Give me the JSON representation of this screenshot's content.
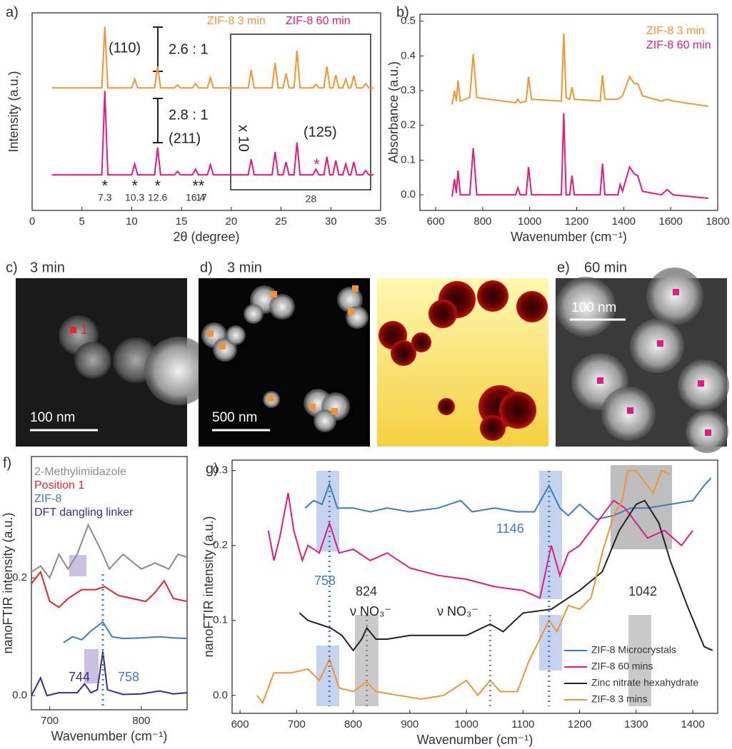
{
  "chart_data": [
    {
      "type": "line",
      "panel_label": "a)",
      "xlabel": "2θ (degree)",
      "ylabel": "Intensity (a.u.)",
      "xlim": [
        0,
        35
      ],
      "ylim": [
        0,
        1
      ],
      "xticks": [
        0,
        5,
        10,
        15,
        20,
        25,
        30,
        35
      ],
      "x": [
        2,
        7.0,
        7.3,
        7.6,
        10.0,
        10.3,
        10.6,
        12.3,
        12.6,
        12.9,
        14.3,
        14.6,
        14.9,
        16.1,
        16.4,
        16.7,
        17.6,
        17.9,
        18.2,
        21.7,
        22.0,
        22.3,
        24.1,
        24.4,
        24.7,
        25.2,
        25.5,
        25.8,
        26.3,
        26.6,
        26.9,
        28.2,
        28.5,
        28.8,
        29.3,
        29.6,
        29.9,
        30.2,
        30.5,
        30.8,
        31.2,
        31.5,
        31.8,
        32.0,
        32.3,
        32.6,
        33.2,
        33.5,
        33.8,
        34.3
      ],
      "series": [
        {
          "name": "ZIF-8 3 min",
          "color": "#f39433",
          "values": [
            0.62,
            0.62,
            0.929,
            0.62,
            0.62,
            0.664,
            0.62,
            0.62,
            0.729,
            0.62,
            0.62,
            0.635,
            0.62,
            0.62,
            0.642,
            0.62,
            0.62,
            0.671,
            0.62,
            0.62,
            0.711,
            0.62,
            0.62,
            0.747,
            0.62,
            0.62,
            0.693,
            0.62,
            0.62,
            0.809,
            0.62,
            0.62,
            0.638,
            0.62,
            0.62,
            0.729,
            0.62,
            0.62,
            0.685,
            0.62,
            0.62,
            0.664,
            0.62,
            0.62,
            0.682,
            0.62,
            0.62,
            0.642,
            0.62,
            0.62
          ]
        },
        {
          "name": "ZIF-8 60 min",
          "color": "#e6197f",
          "values": [
            0.18,
            0.18,
            0.605,
            0.18,
            0.18,
            0.235,
            0.18,
            0.18,
            0.318,
            0.18,
            0.18,
            0.198,
            0.18,
            0.18,
            0.209,
            0.18,
            0.18,
            0.231,
            0.18,
            0.18,
            0.26,
            0.18,
            0.18,
            0.296,
            0.18,
            0.18,
            0.245,
            0.18,
            0.18,
            0.344,
            0.18,
            0.18,
            0.209,
            0.18,
            0.18,
            0.271,
            0.18,
            0.18,
            0.253,
            0.18,
            0.18,
            0.235,
            0.18,
            0.18,
            0.245,
            0.18,
            0.18,
            0.202,
            0.18,
            0.18
          ]
        }
      ],
      "annotations": [
        "(110)",
        "2.6 : 1",
        "2.8 : 1",
        "(211)",
        "x 10",
        "(125)"
      ],
      "marker": "*",
      "peak_labels": [
        7.3,
        10.3,
        12.6,
        16.4,
        17,
        28
      ]
    },
    {
      "type": "line",
      "panel_label": "b)",
      "xlabel": "Wavenumber (cm⁻¹)",
      "ylabel": "Absorbance (a.u.)",
      "xlim": [
        533,
        1800
      ],
      "ylim": [
        -0.045,
        0.52
      ],
      "xticks": [
        600,
        800,
        1000,
        1200,
        1400,
        1600,
        1800
      ],
      "yticks": [
        {
          "value": 0,
          "label": "0.0"
        },
        0.1,
        0.2,
        0.3,
        0.4,
        0.5
      ],
      "x": [
        670,
        680,
        688,
        695,
        705,
        745,
        760,
        775,
        940,
        950,
        960,
        985,
        995,
        1008,
        1135,
        1145,
        1155,
        1170,
        1180,
        1190,
        1300,
        1310,
        1320,
        1375,
        1385,
        1395,
        1425,
        1445,
        1460,
        1480,
        1560,
        1585,
        1610,
        1760
      ],
      "series": [
        {
          "name": "ZIF-8 3 min",
          "color": "#f39433",
          "values": [
            0.26,
            0.3,
            0.27,
            0.33,
            0.27,
            0.28,
            0.405,
            0.28,
            0.265,
            0.275,
            0.265,
            0.27,
            0.34,
            0.275,
            0.27,
            0.465,
            0.28,
            0.275,
            0.31,
            0.275,
            0.27,
            0.345,
            0.275,
            0.275,
            0.28,
            0.285,
            0.34,
            0.32,
            0.32,
            0.285,
            0.27,
            0.275,
            0.27,
            0.255
          ]
        },
        {
          "name": "ZIF-8 60 min",
          "color": "#e6197f",
          "values": [
            -0.005,
            0.045,
            0.005,
            0.07,
            0,
            0,
            0.135,
            0,
            0,
            0.02,
            0,
            0,
            0.08,
            0,
            0,
            0.235,
            0,
            0,
            0.055,
            0,
            0,
            0.09,
            0,
            0,
            0.03,
            0.01,
            0.08,
            0.06,
            0.055,
            0.01,
            0,
            0.015,
            0,
            -0.01
          ]
        }
      ]
    },
    {
      "type": "line",
      "panel_label": "f)",
      "xlabel": "Wavenumber (cm⁻¹)",
      "ylabel": "nanoFTIR intensity (a.u.)",
      "xlim": [
        680,
        850
      ],
      "ylim": [
        -0.024,
        0.406
      ],
      "xticks": [
        700,
        800
      ],
      "yticks": [
        {
          "value": 0,
          "label": "0.0"
        },
        0.2
      ],
      "series": [
        {
          "name": "2-Methylimidazole",
          "color": "#8c8c8c",
          "x": [
            680,
            690,
            700,
            710,
            720,
            730,
            742,
            755,
            765,
            780,
            800,
            815,
            830,
            840,
            850
          ],
          "values": [
            0.21,
            0.22,
            0.2,
            0.24,
            0.215,
            0.24,
            0.29,
            0.25,
            0.215,
            0.24,
            0.215,
            0.225,
            0.215,
            0.24,
            0.235
          ]
        },
        {
          "name": "Position 1",
          "color": "#e8242a",
          "x": [
            680,
            690,
            700,
            710,
            720,
            735,
            750,
            760,
            775,
            790,
            805,
            815,
            825,
            835,
            850
          ],
          "values": [
            0.19,
            0.21,
            0.16,
            0.15,
            0.165,
            0.18,
            0.18,
            0.185,
            0.17,
            0.165,
            0.16,
            0.175,
            0.195,
            0.165,
            0.16
          ]
        },
        {
          "name": "ZIF-8",
          "color": "#3a7dc0",
          "x": [
            715,
            725,
            735,
            745,
            758,
            768,
            780,
            800,
            820,
            835,
            850
          ],
          "values": [
            0.09,
            0.1,
            0.095,
            0.11,
            0.125,
            0.1,
            0.097,
            0.098,
            0.1,
            0.098,
            0.097
          ]
        },
        {
          "name": "DFT dangling linker",
          "color": "#3b2b8c",
          "x": [
            680,
            690,
            697,
            710,
            730,
            738,
            745,
            752,
            758,
            763,
            780,
            800,
            820,
            835,
            850
          ],
          "values": [
            0,
            0.03,
            0,
            0.005,
            0.005,
            0.02,
            0.005,
            0.01,
            0.075,
            0.01,
            0.002,
            0.003,
            0.008,
            0.003,
            0.005
          ]
        }
      ],
      "peak_labels": [
        744,
        758
      ]
    },
    {
      "type": "line",
      "panel_label": "g)",
      "xlabel": "Wavenumber (cm⁻¹)",
      "ylabel": "nanoFTIR intensity (a.u.)",
      "xlim": [
        586,
        1444
      ],
      "ylim": [
        -0.024,
        0.314
      ],
      "xticks": [
        600,
        700,
        800,
        900,
        1000,
        1100,
        1200,
        1300,
        1400
      ],
      "yticks": [
        {
          "value": 0,
          "label": "0.0"
        },
        0.1,
        0.2,
        0.3
      ],
      "series": [
        {
          "name": "ZIF-8 Microcrystals",
          "color": "#3a7dc0",
          "x": [
            715,
            730,
            745,
            758,
            772,
            800,
            830,
            860,
            900,
            950,
            990,
            1010,
            1050,
            1090,
            1120,
            1146,
            1165,
            1180,
            1200,
            1230,
            1260,
            1290,
            1320,
            1360,
            1400,
            1420,
            1432
          ],
          "values": [
            0.25,
            0.26,
            0.255,
            0.282,
            0.25,
            0.25,
            0.245,
            0.25,
            0.245,
            0.25,
            0.26,
            0.245,
            0.25,
            0.245,
            0.245,
            0.28,
            0.25,
            0.24,
            0.255,
            0.235,
            0.24,
            0.25,
            0.25,
            0.255,
            0.26,
            0.28,
            0.29
          ]
        },
        {
          "name": "ZIF-8 60 mins",
          "color": "#e6197f",
          "x": [
            650,
            660,
            670,
            685,
            695,
            710,
            720,
            740,
            758,
            775,
            800,
            830,
            860,
            900,
            950,
            1000,
            1050,
            1100,
            1130,
            1150,
            1165,
            1180,
            1200,
            1230,
            1260,
            1280,
            1300,
            1320,
            1350,
            1380,
            1400
          ],
          "values": [
            0.22,
            0.18,
            0.21,
            0.27,
            0.22,
            0.18,
            0.2,
            0.19,
            0.23,
            0.19,
            0.195,
            0.18,
            0.19,
            0.17,
            0.16,
            0.155,
            0.145,
            0.14,
            0.13,
            0.2,
            0.16,
            0.19,
            0.2,
            0.23,
            0.26,
            0.25,
            0.23,
            0.21,
            0.22,
            0.2,
            0.22
          ]
        },
        {
          "name": "Zinc nitrate hexahydrate",
          "color": "#222222",
          "x": [
            705,
            720,
            740,
            760,
            780,
            800,
            815,
            824,
            840,
            860,
            900,
            950,
            1000,
            1042,
            1065,
            1100,
            1150,
            1200,
            1240,
            1270,
            1300,
            1315,
            1340,
            1360,
            1390,
            1420,
            1435
          ],
          "values": [
            0.11,
            0.1,
            0.095,
            0.09,
            0.08,
            0.06,
            0.075,
            0.09,
            0.075,
            0.075,
            0.08,
            0.08,
            0.08,
            0.095,
            0.085,
            0.11,
            0.115,
            0.14,
            0.165,
            0.22,
            0.255,
            0.26,
            0.23,
            0.18,
            0.12,
            0.065,
            0.06
          ]
        },
        {
          "name": "ZIF-8 3 mins",
          "color": "#f39433",
          "x": [
            630,
            640,
            660,
            690,
            720,
            740,
            758,
            775,
            800,
            824,
            840,
            880,
            920,
            960,
            1000,
            1020,
            1042,
            1060,
            1090,
            1110,
            1146,
            1160,
            1180,
            1200,
            1220,
            1240,
            1260,
            1275,
            1285,
            1300,
            1310,
            1330,
            1345,
            1360
          ],
          "values": [
            0,
            -0.01,
            0.03,
            0.03,
            0.035,
            0.02,
            0.048,
            0.01,
            0.005,
            0.018,
            0.005,
            0,
            -0.005,
            0,
            0.02,
            0,
            0.02,
            0.005,
            0.005,
            0.045,
            0.1,
            0.085,
            0.12,
            0.115,
            0.13,
            0.19,
            0.24,
            0.26,
            0.3,
            0.3,
            0.29,
            0.27,
            0.3,
            0.295
          ]
        }
      ],
      "peak_labels": [
        758,
        1146,
        824,
        1042
      ],
      "nitrate_label": "ν NO₃⁻"
    }
  ],
  "panels": [
    {
      "label": "c)",
      "time": "3 min",
      "scale": "100 nm",
      "position": "1"
    },
    {
      "label": "d)",
      "time": "3 min",
      "scale": "500 nm"
    },
    {
      "label": "e)",
      "time": "60 min",
      "scale": "100 nm"
    }
  ]
}
